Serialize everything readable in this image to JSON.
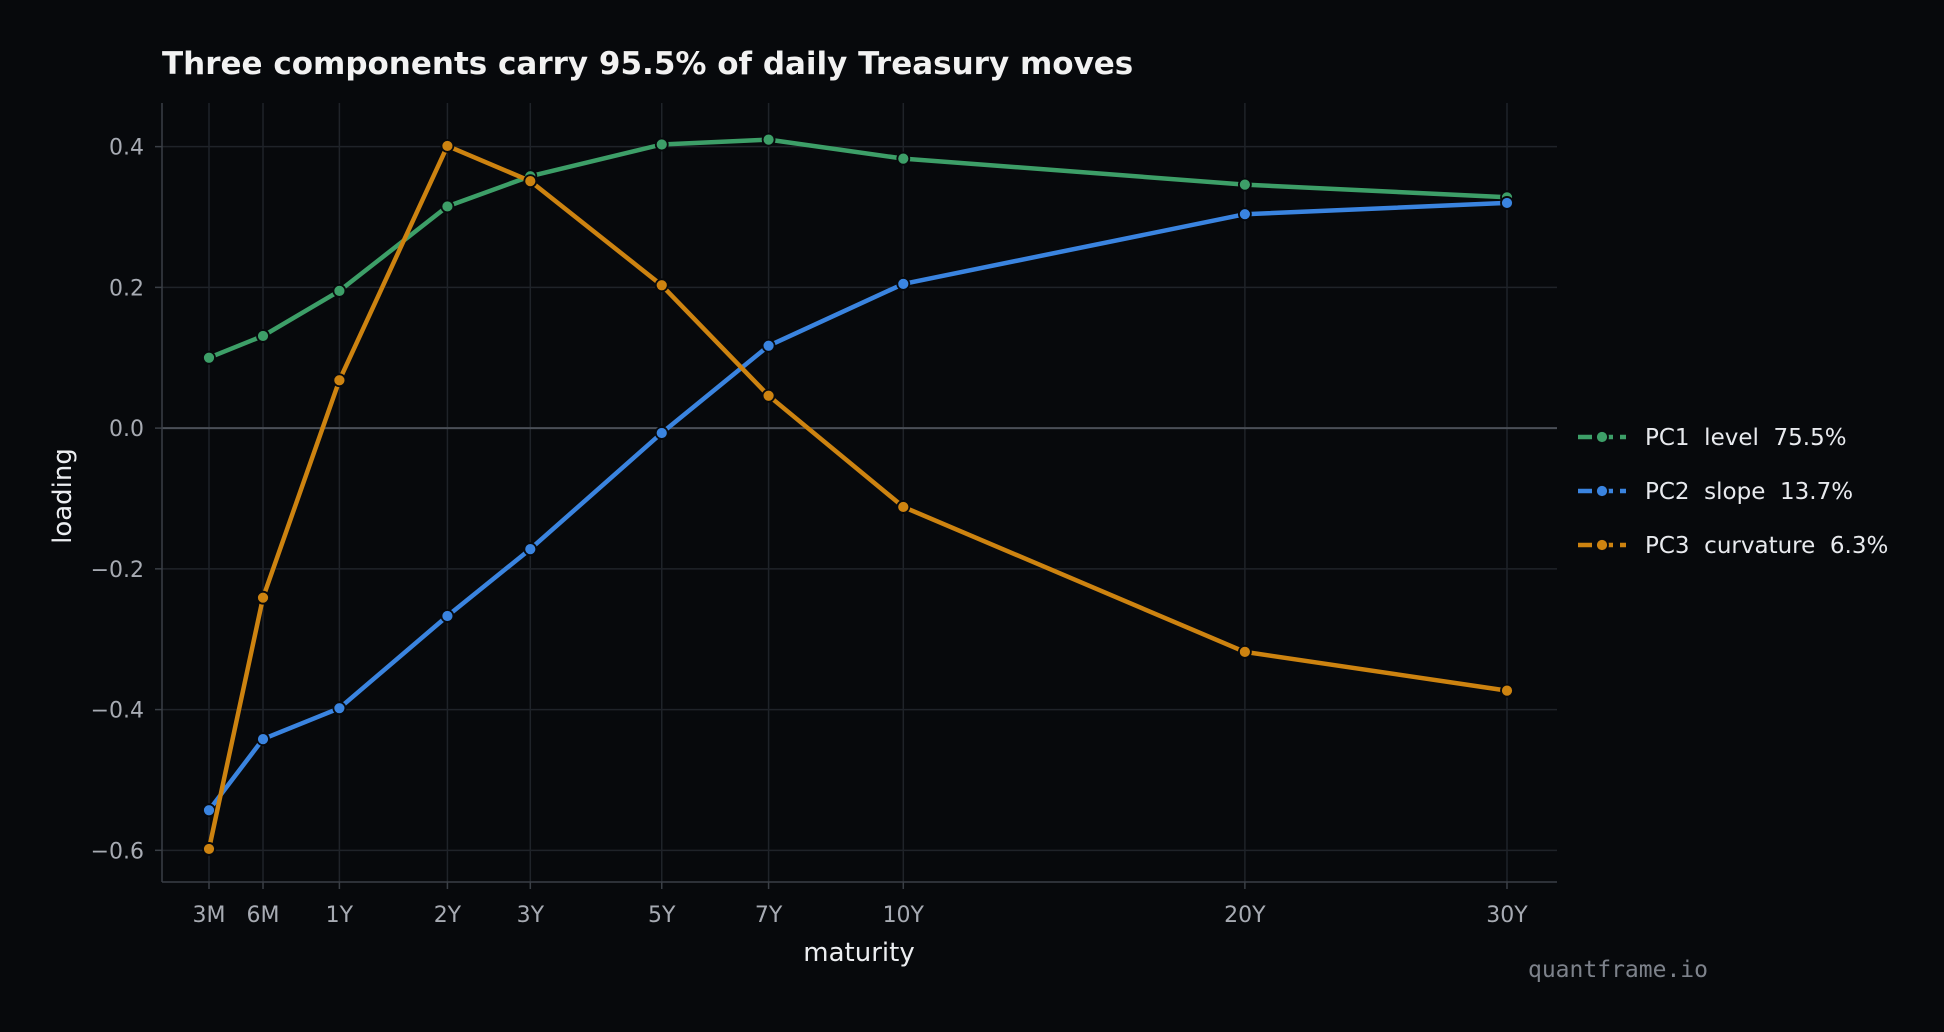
{
  "chart_data": {
    "type": "line",
    "title": "Three components carry 95.5% of daily Treasury moves",
    "xlabel": "maturity",
    "ylabel": "loading",
    "categories": [
      "3M",
      "6M",
      "1Y",
      "2Y",
      "3Y",
      "5Y",
      "7Y",
      "10Y",
      "20Y",
      "30Y"
    ],
    "x_years": [
      0.25,
      0.5,
      1,
      2,
      3,
      5,
      7,
      10,
      20,
      30
    ],
    "x_scale": "sqrt",
    "ylim": [
      -0.645,
      0.462
    ],
    "yticks": [
      0.4,
      0.2,
      0.0,
      -0.2,
      -0.4,
      -0.6
    ],
    "ytick_labels": [
      "0.4",
      "0.2",
      "0.0",
      "−0.2",
      "−0.4",
      "−0.6"
    ],
    "grid": true,
    "zero_line": true,
    "legend_position": "right",
    "series": [
      {
        "name": "PC1  level  75.5%",
        "color": "#3d9f68",
        "values": [
          0.1,
          0.131,
          0.195,
          0.315,
          0.358,
          0.403,
          0.41,
          0.383,
          0.346,
          0.328
        ]
      },
      {
        "name": "PC2  slope  13.7%",
        "color": "#3a84e0",
        "values": [
          -0.543,
          -0.442,
          -0.398,
          -0.267,
          -0.172,
          -0.007,
          0.117,
          0.205,
          0.304,
          0.32
        ]
      },
      {
        "name": "PC3  curvature  6.3%",
        "color": "#cd8310",
        "values": [
          -0.598,
          -0.241,
          0.068,
          0.401,
          0.351,
          0.203,
          0.046,
          -0.112,
          -0.318,
          -0.373
        ]
      }
    ]
  },
  "watermark": "quantframe.io"
}
